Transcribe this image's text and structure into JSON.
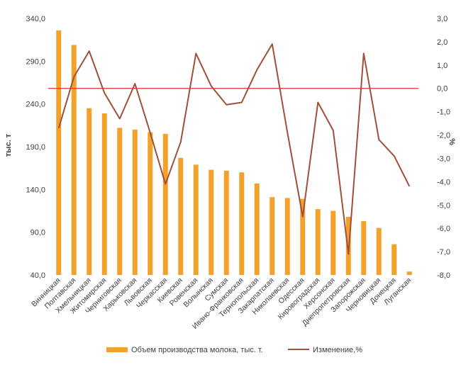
{
  "chart_data": {
    "type": "bar",
    "categories": [
      "Винницкая",
      "Полтавская",
      "Хмельницкая",
      "Житомирская",
      "Черниговская",
      "Харьковская",
      "Львовская",
      "Черкасская",
      "Киевская",
      "Ровенская",
      "Волынская",
      "Сумская",
      "Ивано-Франковская",
      "Тернопольская",
      "Закарпатская",
      "Николаевская",
      "Одесская",
      "Кировоградская",
      "Херсонская",
      "Днепропетровская",
      "Запорожская",
      "Черновицкая",
      "Донецкая",
      "Луганская"
    ],
    "series": [
      {
        "name": "Объем производства молока, тыс. т.",
        "type": "bar",
        "axis": "left",
        "color": "#F4A12B",
        "values": [
          326,
          309,
          235,
          229,
          212,
          210,
          207,
          205,
          177,
          169,
          163,
          162,
          160,
          147,
          131,
          130,
          129,
          117,
          115,
          108,
          103,
          95,
          76,
          44
        ]
      },
      {
        "name": "Изменение,%",
        "type": "line",
        "axis": "right",
        "color": "#A0503A",
        "values": [
          -1.7,
          0.5,
          1.6,
          -0.2,
          -1.3,
          0.2,
          -1.9,
          -4.1,
          -2.3,
          1.5,
          0.1,
          -0.7,
          -0.6,
          0.8,
          1.9,
          -1.9,
          -5.5,
          -0.6,
          -1.8,
          -7.1,
          1.5,
          -2.2,
          -2.9,
          -4.2
        ]
      }
    ],
    "ylabel": "тыс. т",
    "y2label": "%",
    "ylim": [
      40,
      340
    ],
    "y2lim": [
      -8,
      3
    ],
    "yticks": [
      "40,0",
      "90,0",
      "140,0",
      "190,0",
      "240,0",
      "290,0",
      "340,0"
    ],
    "y2ticks": [
      "-8,0",
      "-7,0",
      "-6,0",
      "-5,0",
      "-4,0",
      "-3,0",
      "-2,0",
      "-1,0",
      "0,0",
      "1,0",
      "2,0",
      "3,0"
    ],
    "zero_line_color": "#E0302A",
    "grid": false,
    "legend_position": "bottom"
  }
}
